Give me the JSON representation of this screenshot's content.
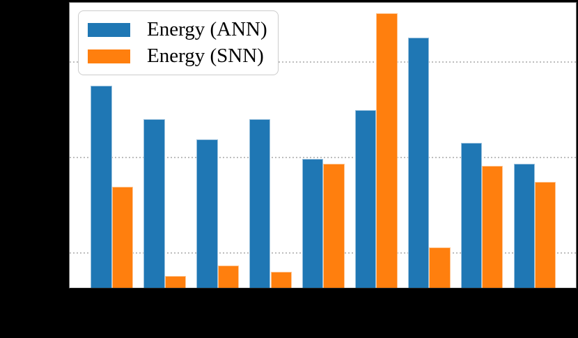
{
  "window": {
    "background_color": "#000000"
  },
  "plot": {
    "background_color": "#ffffff",
    "spine_color": "#6f6f6f",
    "gridline_color": "#bdbdbd"
  },
  "legend": {
    "position": "upper-left",
    "entries": [
      {
        "label": "Energy (ANN)",
        "color": "#1f77b4"
      },
      {
        "label": "Energy (SNN)",
        "color": "#ff7f0e"
      }
    ]
  },
  "chart_data": {
    "type": "bar",
    "title": "",
    "n_groups": 9,
    "categories_visible": false,
    "note": "Axis tick labels and axis titles are rendered black on the black background and are not visible. Series values are estimated from bar heights on the log-scale y axis (dotted gridlines assumed at 1, 10, 100).",
    "y_scale": "log",
    "y_axis": {
      "min": 0.433,
      "max": 420,
      "gridlines": [
        1,
        10,
        100
      ],
      "gridline_style": "dotted"
    },
    "grid": true,
    "legend_position": "upper left",
    "series": [
      {
        "name": "Energy (ANN)",
        "color": "#1f77b4",
        "values": [
          57,
          25.3,
          15.6,
          25.3,
          9.7,
          31.5,
          180,
          14.2,
          8.6
        ]
      },
      {
        "name": "Energy (SNN)",
        "color": "#ff7f0e",
        "values": [
          5.0,
          0.58,
          0.74,
          0.64,
          8.6,
          325,
          1.15,
          8.2,
          5.6
        ]
      }
    ]
  }
}
